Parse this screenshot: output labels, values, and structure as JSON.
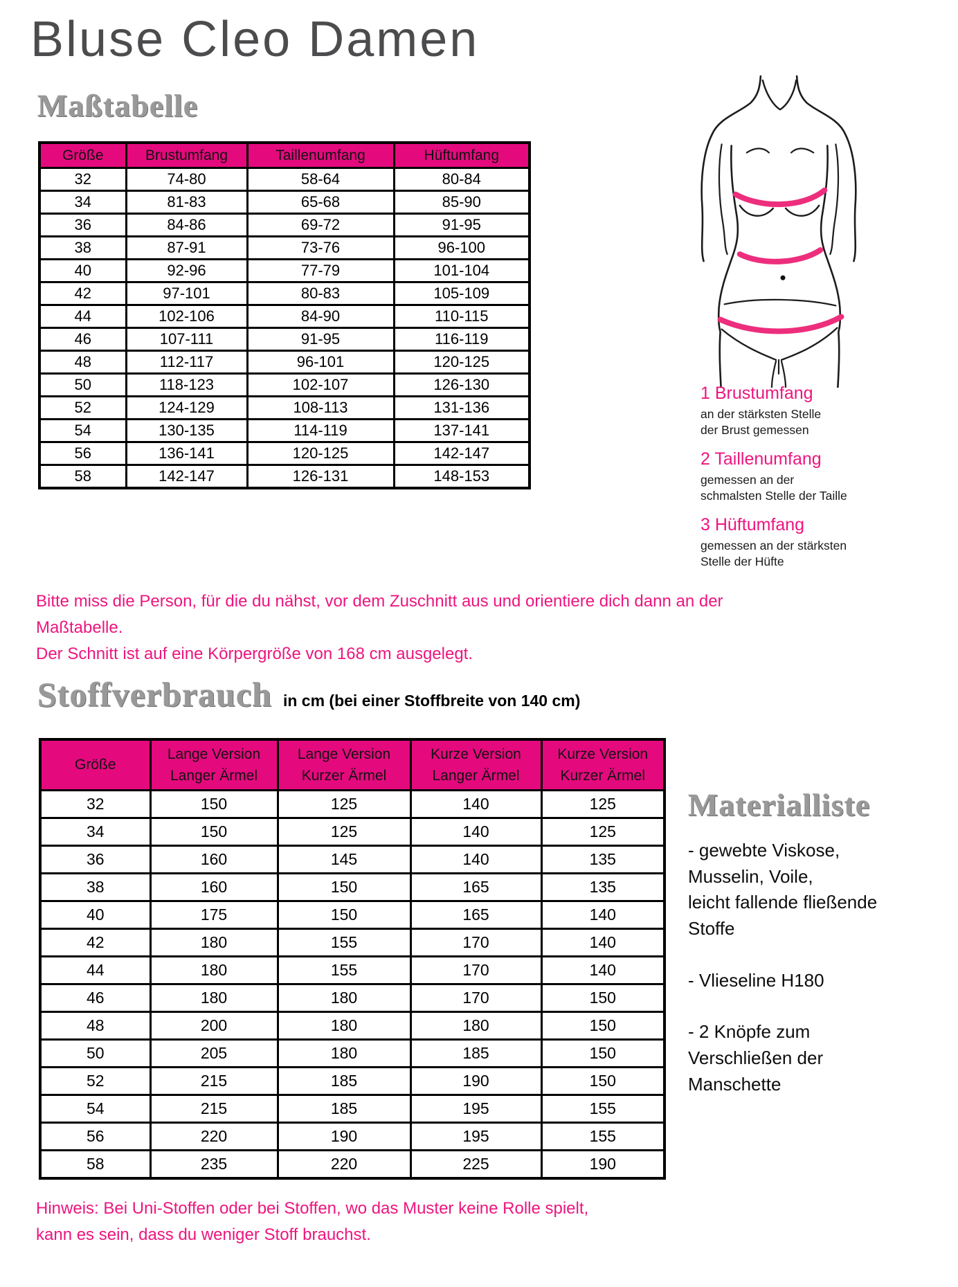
{
  "page": {
    "title": "Bluse Cleo Damen"
  },
  "colors": {
    "table_header_pink": "#e5097e",
    "accent_pink_text": "#ed157f",
    "figure_band_pink": "#ed2e7d",
    "heading_gray": "#999999",
    "title_gray": "#4c4c4e"
  },
  "size_table": {
    "heading": "Maßtabelle",
    "columns": [
      "Größe",
      "Brustumfang",
      "Taillenumfang",
      "Hüftumfang"
    ],
    "rows": [
      [
        "32",
        "74-80",
        "58-64",
        "80-84"
      ],
      [
        "34",
        "81-83",
        "65-68",
        "85-90"
      ],
      [
        "36",
        "84-86",
        "69-72",
        "91-95"
      ],
      [
        "38",
        "87-91",
        "73-76",
        "96-100"
      ],
      [
        "40",
        "92-96",
        "77-79",
        "101-104"
      ],
      [
        "42",
        "97-101",
        "80-83",
        "105-109"
      ],
      [
        "44",
        "102-106",
        "84-90",
        "110-115"
      ],
      [
        "46",
        "107-111",
        "91-95",
        "116-119"
      ],
      [
        "48",
        "112-117",
        "96-101",
        "120-125"
      ],
      [
        "50",
        "118-123",
        "102-107",
        "126-130"
      ],
      [
        "52",
        "124-129",
        "108-113",
        "131-136"
      ],
      [
        "54",
        "130-135",
        "114-119",
        "137-141"
      ],
      [
        "56",
        "136-141",
        "120-125",
        "142-147"
      ],
      [
        "58",
        "142-147",
        "126-131",
        "148-153"
      ]
    ]
  },
  "measure_guide": {
    "items": [
      {
        "label": "1 Brustumfang",
        "desc": "an der stärksten Stelle\nder Brust gemessen"
      },
      {
        "label": "2 Taillenumfang",
        "desc": "gemessen an der\nschmalsten Stelle der Taille"
      },
      {
        "label": "3 Hüftumfang",
        "desc": "gemessen an der stärksten\nStelle der Hüfte"
      }
    ]
  },
  "note_measure": "Bitte miss die Person, für die du nähst, vor dem Zuschnitt aus und orientiere dich dann an der Maßtabelle.\nDer Schnitt ist auf eine Körpergröße von 168 cm ausgelegt.",
  "fabric_table": {
    "heading": "Stoffverbrauch",
    "subtitle": "in cm (bei einer Stoffbreite von 140 cm)",
    "columns": [
      "Größe",
      "Lange Version\nLanger Ärmel",
      "Lange Version\nKurzer Ärmel",
      "Kurze Version\nLanger Ärmel",
      "Kurze Version\nKurzer Ärmel"
    ],
    "rows": [
      [
        "32",
        "150",
        "125",
        "140",
        "125"
      ],
      [
        "34",
        "150",
        "125",
        "140",
        "125"
      ],
      [
        "36",
        "160",
        "145",
        "140",
        "135"
      ],
      [
        "38",
        "160",
        "150",
        "165",
        "135"
      ],
      [
        "40",
        "175",
        "150",
        "165",
        "140"
      ],
      [
        "42",
        "180",
        "155",
        "170",
        "140"
      ],
      [
        "44",
        "180",
        "155",
        "170",
        "140"
      ],
      [
        "46",
        "180",
        "180",
        "170",
        "150"
      ],
      [
        "48",
        "200",
        "180",
        "180",
        "150"
      ],
      [
        "50",
        "205",
        "180",
        "185",
        "150"
      ],
      [
        "52",
        "215",
        "185",
        "190",
        "150"
      ],
      [
        "54",
        "215",
        "185",
        "195",
        "155"
      ],
      [
        "56",
        "220",
        "190",
        "195",
        "155"
      ],
      [
        "58",
        "235",
        "220",
        "225",
        "190"
      ]
    ]
  },
  "materials": {
    "heading": "Materialliste",
    "items": [
      "- gewebte Viskose,\nMusselin, Voile,\nleicht fallende fließende\nStoffe",
      "- Vlieseline H180",
      "- 2 Knöpfe zum\nVerschließen der\nManschette"
    ]
  },
  "note_fabric": "Hinweis: Bei Uni-Stoffen oder bei Stoffen, wo das Muster keine Rolle spielt,\nkann es sein, dass du weniger Stoff brauchst."
}
